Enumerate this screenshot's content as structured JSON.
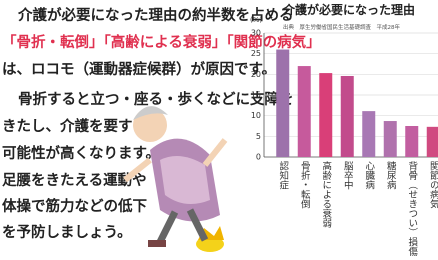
{
  "article": {
    "lead": "介護が必要になった理由の約半数を占める",
    "highlight": "「骨折・転倒」「高齢による衰弱」「関節の病気」",
    "lead_end": "は、ロコモ（運動器症候群）が原因です。",
    "body": [
      "骨折すると立つ・座る・歩くなどに支障を",
      "きたし、介護を要する",
      "可能性が高くなります。",
      "足腰をきたえる運動や",
      "体操で筋力などの低下",
      "を予防しましょう。"
    ]
  },
  "chart_data": {
    "type": "bar",
    "title": "介護が必要になった理由",
    "ylabel": "(%)",
    "source": "出典　厚生労働省国民生活基礎調査　平成28年",
    "categories": [
      "認知症",
      "骨折・転倒",
      "高齢による衰弱",
      "脳卒中",
      "心臓病",
      "糖尿病",
      "背骨（せきつい）損傷",
      "関節の病気"
    ],
    "values": [
      26,
      22,
      20.3,
      19.6,
      11.1,
      8.7,
      7.5,
      7.3
    ],
    "colors": [
      "#9d72ab",
      "#c65a9c",
      "#d93f78",
      "#c24b8c",
      "#a878b4",
      "#b072ad",
      "#c25ea0",
      "#d04a80"
    ],
    "ylim": [
      0,
      30
    ],
    "yticks": [
      0,
      5,
      10,
      15,
      20,
      25,
      30
    ],
    "grid": true
  }
}
